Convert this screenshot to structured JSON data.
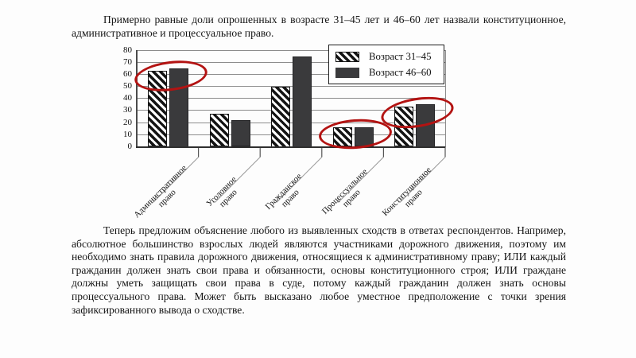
{
  "document": {
    "paragraph_top": "Примерно равные доли опрошенных в возрасте 31–45 лет и 46–60 лет назвали конституционное, административное и процессуальное право.",
    "paragraph_bottom": "Теперь предложим объяснение любого из выявленных сходств в ответах респондентов. Например, абсолютное большинство взрослых людей являются участниками дорожного движения, поэтому им необходимо знать правила дорожного движения, относящиеся к административному праву; ИЛИ каждый гражданин должен знать свои права и обязанности, основы конституционного строя; ИЛИ граждане должны уметь защищать свои права в суде, потому каждый гражданин должен знать основы процессуального права. Может быть высказано любое уместное предположение с точки зрения зафиксированного вывода о сходстве."
  },
  "chart_data": {
    "type": "bar",
    "title": "",
    "categories": [
      "Административное право",
      "Уголовное право",
      "Гражданское право",
      "Процессуальное право",
      "Конституционное право"
    ],
    "series": [
      {
        "name": "Возраст 31–45",
        "style": "hatched",
        "values": [
          63,
          27,
          50,
          16,
          33
        ]
      },
      {
        "name": "Возраст 46–60",
        "style": "solid",
        "values": [
          65,
          22,
          75,
          16,
          35
        ]
      }
    ],
    "ylim": [
      0,
      80
    ],
    "yticks": [
      0,
      10,
      20,
      30,
      40,
      50,
      60,
      70,
      80
    ],
    "grid": true,
    "legend_position": "top-right",
    "colors": {
      "solid_bar": "#3a3a3c",
      "hatch_stroke": "#141414",
      "annotation_red": "#b31312"
    },
    "annotations": [
      {
        "type": "ellipse",
        "around_category": "Административное право",
        "category_index": 0,
        "tilt_deg": -7
      },
      {
        "type": "ellipse",
        "around_category": "Процессуальное право",
        "category_index": 3,
        "tilt_deg": -4
      },
      {
        "type": "ellipse",
        "around_category": "Конституционное право",
        "category_index": 4,
        "tilt_deg": -9
      }
    ]
  }
}
